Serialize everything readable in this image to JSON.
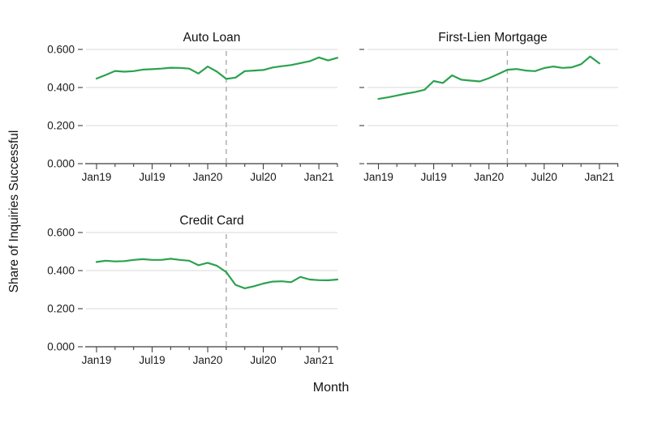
{
  "figure": {
    "ylabel": "Share of Inquiries Successful",
    "xlabel": "Month"
  },
  "colors": {
    "line": "#2ba24e",
    "grid": "#d9d9d9",
    "axis": "#3f3f3f",
    "tick_text": "#1a1a1a",
    "title_text": "#111111",
    "dashed_line": "#ababab",
    "background": "#ffffff"
  },
  "axes": {
    "axis_months": [
      "Jan19",
      "Feb19",
      "Mar19",
      "Apr19",
      "May19",
      "Jun19",
      "Jul19",
      "Aug19",
      "Sep19",
      "Oct19",
      "Nov19",
      "Dec19",
      "Jan20",
      "Feb20",
      "Mar20",
      "Apr20",
      "May20",
      "Jun20",
      "Jul20",
      "Aug20",
      "Sep20",
      "Oct20",
      "Nov20",
      "Dec20",
      "Jan21",
      "Feb21",
      "Mar21"
    ],
    "xticks_major": [
      "Jan19",
      "Jul19",
      "Jan20",
      "Jul20",
      "Jan21"
    ],
    "yticks": {
      "values": [
        0,
        0.2,
        0.4,
        0.6
      ],
      "labels": [
        "0.000",
        "0.200",
        "0.400",
        "0.600"
      ]
    },
    "ylim": [
      0,
      0.6
    ],
    "grid": "horizontal-only"
  },
  "chart_data": [
    {
      "type": "line",
      "title": "Auto Loan",
      "x": [
        "Jan19",
        "Feb19",
        "Mar19",
        "Apr19",
        "May19",
        "Jun19",
        "Jul19",
        "Aug19",
        "Sep19",
        "Oct19",
        "Nov19",
        "Dec19",
        "Jan20",
        "Feb20",
        "Mar20",
        "Apr20",
        "May20",
        "Jun20",
        "Jul20",
        "Aug20",
        "Sep20",
        "Oct20",
        "Nov20",
        "Dec20",
        "Jan21",
        "Feb21",
        "Mar21"
      ],
      "series": [
        {
          "name": "Auto Loan",
          "values": [
            0.447,
            0.466,
            0.487,
            0.483,
            0.486,
            0.494,
            0.496,
            0.499,
            0.504,
            0.503,
            0.499,
            0.473,
            0.51,
            0.483,
            0.445,
            0.452,
            0.486,
            0.489,
            0.492,
            0.505,
            0.512,
            0.518,
            0.528,
            0.538,
            0.558,
            0.542,
            0.556
          ]
        }
      ],
      "vline_month": "Mar20",
      "ylim": [
        0,
        0.6
      ],
      "show_y_tick_labels": true
    },
    {
      "type": "line",
      "title": "First-Lien Mortgage",
      "x": [
        "Jan19",
        "Feb19",
        "Mar19",
        "Apr19",
        "May19",
        "Jun19",
        "Jul19",
        "Aug19",
        "Sep19",
        "Oct19",
        "Nov19",
        "Dec19",
        "Jan20",
        "Feb20",
        "Mar20",
        "Apr20",
        "May20",
        "Jun20",
        "Jul20",
        "Aug20",
        "Sep20",
        "Oct20",
        "Nov20",
        "Dec20",
        "Jan21"
      ],
      "series": [
        {
          "name": "First-Lien Mortgage",
          "values": [
            0.34,
            0.348,
            0.358,
            0.368,
            0.376,
            0.388,
            0.434,
            0.424,
            0.464,
            0.441,
            0.436,
            0.432,
            0.449,
            0.47,
            0.493,
            0.497,
            0.489,
            0.486,
            0.502,
            0.51,
            0.503,
            0.506,
            0.522,
            0.563,
            0.527
          ]
        }
      ],
      "vline_month": "Mar20",
      "ylim": [
        0,
        0.6
      ],
      "show_y_tick_labels": false
    },
    {
      "type": "line",
      "title": "Credit Card",
      "x": [
        "Jan19",
        "Feb19",
        "Mar19",
        "Apr19",
        "May19",
        "Jun19",
        "Jul19",
        "Aug19",
        "Sep19",
        "Oct19",
        "Nov19",
        "Dec19",
        "Jan20",
        "Feb20",
        "Mar20",
        "Apr20",
        "May20",
        "Jun20",
        "Jul20",
        "Aug20",
        "Sep20",
        "Oct20",
        "Nov20",
        "Dec20",
        "Jan21",
        "Feb21",
        "Mar21"
      ],
      "series": [
        {
          "name": "Credit Card",
          "values": [
            0.445,
            0.452,
            0.448,
            0.45,
            0.456,
            0.46,
            0.456,
            0.456,
            0.462,
            0.456,
            0.452,
            0.428,
            0.441,
            0.425,
            0.392,
            0.325,
            0.307,
            0.318,
            0.332,
            0.342,
            0.344,
            0.339,
            0.367,
            0.353,
            0.35,
            0.349,
            0.353
          ]
        }
      ],
      "vline_month": "Mar20",
      "ylim": [
        0,
        0.6
      ],
      "show_y_tick_labels": true
    }
  ]
}
